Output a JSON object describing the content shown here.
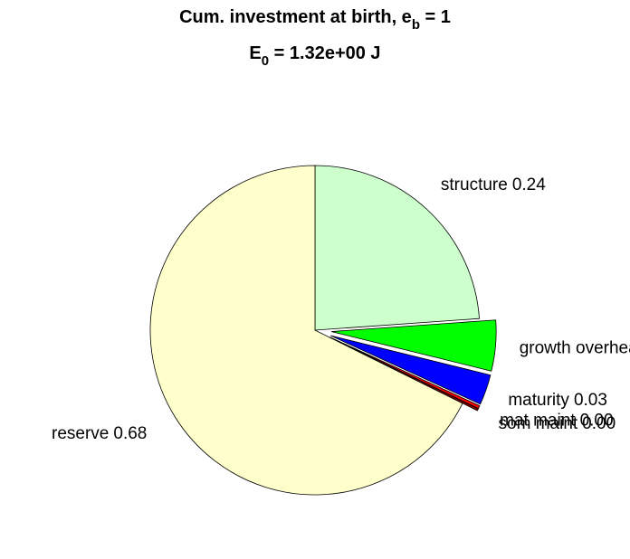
{
  "chart_data": {
    "type": "pie",
    "title": [
      "Cum. investment at birth, e",
      "b",
      " = 1"
    ],
    "subtitle": [
      "E",
      "0",
      " = 1.32e+00 J"
    ],
    "categories": [
      "structure",
      "growth overhead",
      "maturity",
      "mat maint",
      "som maint",
      "reserve"
    ],
    "values": [
      0.24,
      0.05,
      0.03,
      0.003,
      0.002,
      0.68
    ],
    "value_labels": [
      "0.24",
      null,
      "0.03",
      "0.00",
      "0.00",
      "0.68"
    ],
    "colors": [
      "#ccffcc",
      "#00ff00",
      "#0000ff",
      "#ff0000",
      "#800000",
      "#ffffcc"
    ],
    "explode": [
      false,
      true,
      true,
      true,
      true,
      false
    ]
  }
}
